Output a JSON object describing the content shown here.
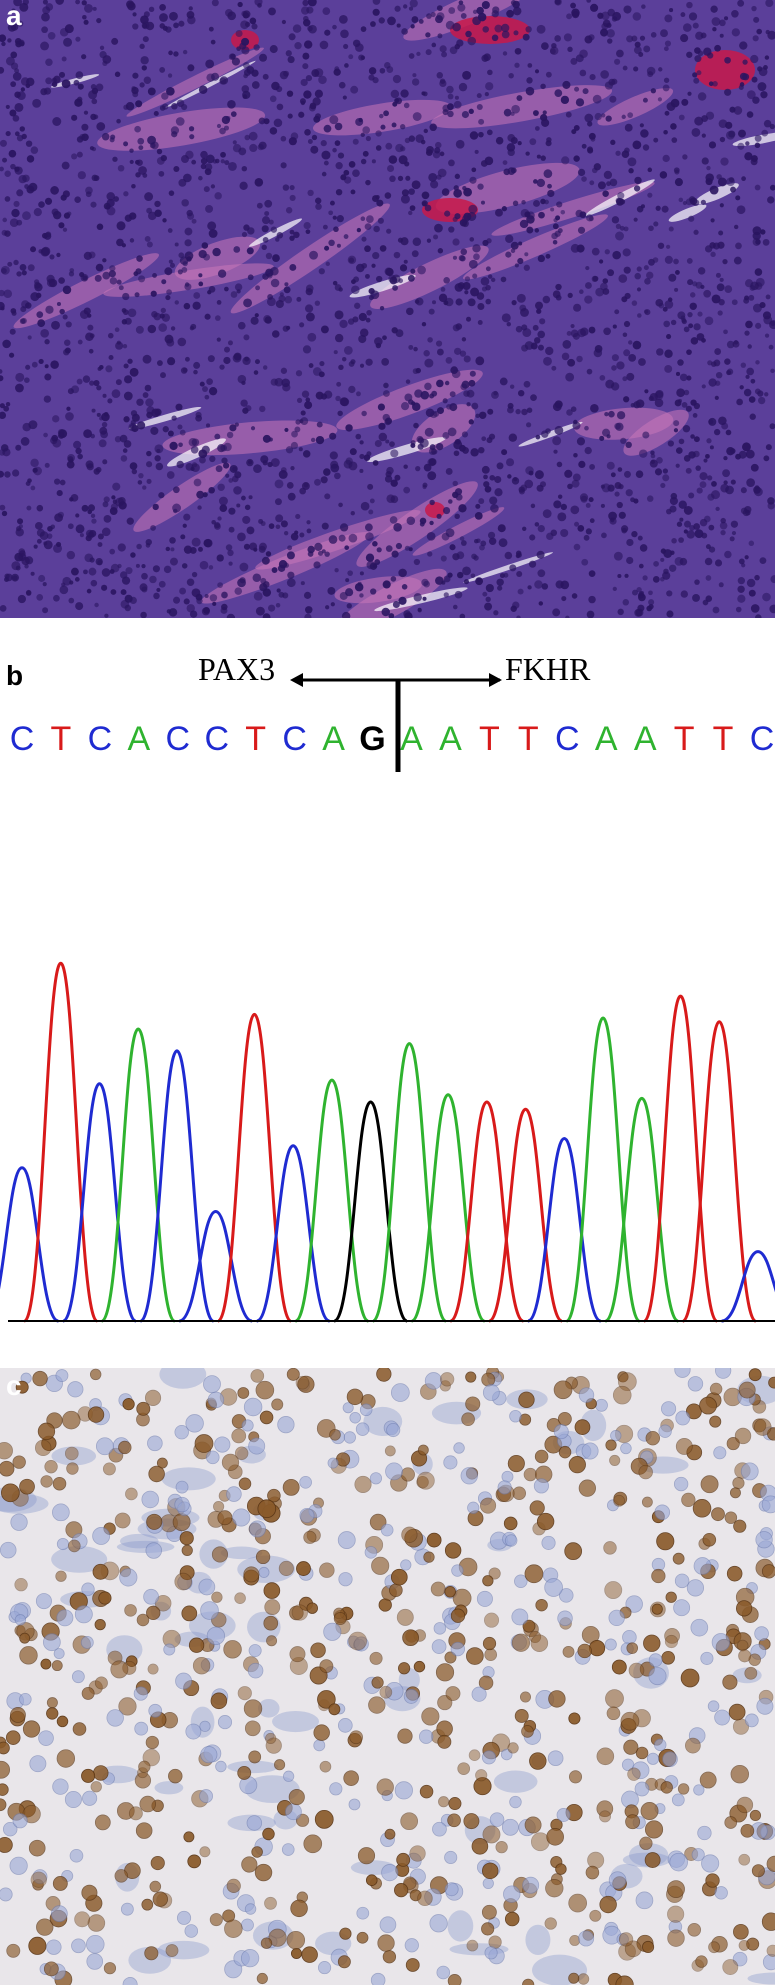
{
  "figure": {
    "panel_a": {
      "letter": "a",
      "image": "H&E stained tissue section with densely packed small round blue cells and pink vessels",
      "colors": {
        "background": "#5b3f9a",
        "stroma": "#c876b8",
        "vessel": "#c8194a",
        "nuclei": "#2a1560"
      }
    },
    "panel_b": {
      "letter": "b",
      "left_gene": "PAX3",
      "right_gene": "FKHR",
      "sequence": [
        {
          "base": "C",
          "color": "#1f2bd1"
        },
        {
          "base": "T",
          "color": "#d81a1a"
        },
        {
          "base": "C",
          "color": "#1f2bd1"
        },
        {
          "base": "A",
          "color": "#2fb32f"
        },
        {
          "base": "C",
          "color": "#1f2bd1"
        },
        {
          "base": "C",
          "color": "#1f2bd1"
        },
        {
          "base": "T",
          "color": "#d81a1a"
        },
        {
          "base": "C",
          "color": "#1f2bd1"
        },
        {
          "base": "A",
          "color": "#2fb32f"
        },
        {
          "base": "G",
          "color": "#000000"
        },
        {
          "base": "A",
          "color": "#2fb32f"
        },
        {
          "base": "A",
          "color": "#2fb32f"
        },
        {
          "base": "T",
          "color": "#d81a1a"
        },
        {
          "base": "T",
          "color": "#d81a1a"
        },
        {
          "base": "C",
          "color": "#1f2bd1"
        },
        {
          "base": "A",
          "color": "#2fb32f"
        },
        {
          "base": "A",
          "color": "#2fb32f"
        },
        {
          "base": "T",
          "color": "#d81a1a"
        },
        {
          "base": "T",
          "color": "#d81a1a"
        },
        {
          "base": "C",
          "color": "#1f2bd1"
        }
      ],
      "chromatogram_peaks": [
        {
          "base": "C",
          "color": "#1f2bd1",
          "height": 0.42
        },
        {
          "base": "T",
          "color": "#d81a1a",
          "height": 0.98
        },
        {
          "base": "C",
          "color": "#1f2bd1",
          "height": 0.65
        },
        {
          "base": "A",
          "color": "#2fb32f",
          "height": 0.8
        },
        {
          "base": "C",
          "color": "#1f2bd1",
          "height": 0.74
        },
        {
          "base": "C",
          "color": "#1f2bd1",
          "height": 0.3
        },
        {
          "base": "T",
          "color": "#d81a1a",
          "height": 0.84
        },
        {
          "base": "C",
          "color": "#1f2bd1",
          "height": 0.48
        },
        {
          "base": "A",
          "color": "#2fb32f",
          "height": 0.66
        },
        {
          "base": "G",
          "color": "#000000",
          "height": 0.6
        },
        {
          "base": "A",
          "color": "#2fb32f",
          "height": 0.76
        },
        {
          "base": "A",
          "color": "#2fb32f",
          "height": 0.62
        },
        {
          "base": "T",
          "color": "#d81a1a",
          "height": 0.6
        },
        {
          "base": "T",
          "color": "#d81a1a",
          "height": 0.58
        },
        {
          "base": "C",
          "color": "#1f2bd1",
          "height": 0.5
        },
        {
          "base": "A",
          "color": "#2fb32f",
          "height": 0.83
        },
        {
          "base": "A",
          "color": "#2fb32f",
          "height": 0.61
        },
        {
          "base": "T",
          "color": "#d81a1a",
          "height": 0.89
        },
        {
          "base": "T",
          "color": "#d81a1a",
          "height": 0.82
        },
        {
          "base": "C",
          "color": "#1f2bd1",
          "height": 0.19
        }
      ]
    },
    "panel_c": {
      "letter": "c",
      "image": "Immunohistochemistry with brown nuclear staining on pale blue background",
      "colors": {
        "background": "#e9e6ea",
        "brown_nucleus": "#8a5a2a",
        "blue_nucleus": "#9aa8d6"
      }
    }
  }
}
